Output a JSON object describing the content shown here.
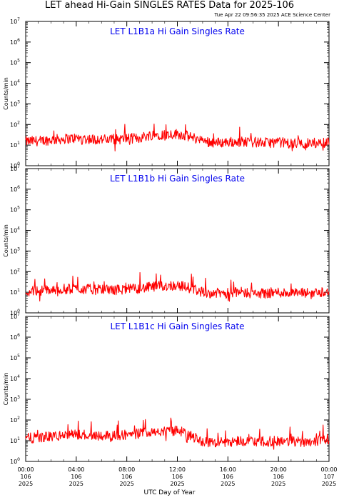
{
  "title": "LET ahead Hi-Gain SINGLES RATES Data for 2025-106",
  "timestamp": "Tue Apr 22 09:56:35 2025 ACE Science Center",
  "xlabel": "UTC Day of Year",
  "colors": {
    "panel_title": "#0000ee",
    "series": "#ff0000",
    "axes": "#000000"
  },
  "chart_data": [
    {
      "type": "line",
      "title": "LET L1B1a Hi Gain Singles Rate",
      "ylabel": "Counts/min",
      "yscale": "log",
      "ylim": [
        1,
        10000000
      ],
      "xlim": [
        0,
        24
      ],
      "y_tick_labels": [
        "10^0",
        "10^1",
        "10^2",
        "10^3",
        "10^4",
        "10^5",
        "10^6",
        "10^7"
      ],
      "x": [
        0,
        1,
        2,
        3,
        4,
        5,
        6,
        7,
        8,
        9,
        10,
        11,
        12,
        13,
        14,
        15,
        16,
        17,
        18,
        19,
        20,
        21,
        22,
        23,
        24
      ],
      "series": [
        {
          "values": [
            15,
            16,
            18,
            20,
            22,
            20,
            19,
            18,
            21,
            22,
            32,
            33,
            35,
            25,
            16,
            13,
            14,
            15,
            14,
            13,
            14,
            12,
            12,
            13,
            14
          ]
        }
      ]
    },
    {
      "type": "line",
      "title": "LET L1B1b Hi Gain Singles Rate",
      "ylabel": "Counts/min",
      "yscale": "log",
      "ylim": [
        1,
        10000000
      ],
      "xlim": [
        0,
        24
      ],
      "y_tick_labels": [
        "10^0",
        "10^1",
        "10^2",
        "10^3",
        "10^4",
        "10^5",
        "10^6",
        "10^7"
      ],
      "x": [
        0,
        1,
        2,
        3,
        4,
        5,
        6,
        7,
        8,
        9,
        10,
        11,
        12,
        13,
        14,
        15,
        16,
        17,
        18,
        19,
        20,
        21,
        22,
        23,
        24
      ],
      "series": [
        {
          "values": [
            11,
            12,
            13,
            14,
            15,
            14,
            13,
            13,
            14,
            15,
            18,
            20,
            22,
            16,
            10,
            9,
            9,
            10,
            9,
            9,
            10,
            9,
            9,
            10,
            11
          ]
        }
      ]
    },
    {
      "type": "line",
      "title": "LET L1B1c Hi Gain Singles Rate",
      "ylabel": "Counts/min",
      "yscale": "log",
      "ylim": [
        1,
        10000000
      ],
      "xlim": [
        0,
        24
      ],
      "y_tick_labels": [
        "10^0",
        "10^1",
        "10^2",
        "10^3",
        "10^4",
        "10^5",
        "10^6",
        "10^7"
      ],
      "x": [
        0,
        1,
        2,
        3,
        4,
        5,
        6,
        7,
        8,
        9,
        10,
        11,
        12,
        13,
        14,
        15,
        16,
        17,
        18,
        19,
        20,
        21,
        22,
        23,
        24
      ],
      "series": [
        {
          "values": [
            13,
            14,
            16,
            18,
            20,
            19,
            18,
            18,
            20,
            22,
            30,
            28,
            30,
            18,
            9,
            8,
            9,
            10,
            9,
            9,
            10,
            9,
            9,
            10,
            12
          ]
        }
      ]
    }
  ],
  "x_ticks": [
    {
      "time": "00:00",
      "day": "106",
      "year": "2025"
    },
    {
      "time": "04:00",
      "day": "106",
      "year": "2025"
    },
    {
      "time": "08:00",
      "day": "106",
      "year": "2025"
    },
    {
      "time": "12:00",
      "day": "106",
      "year": "2025"
    },
    {
      "time": "16:00",
      "day": "106",
      "year": "2025"
    },
    {
      "time": "20:00",
      "day": "106",
      "year": "2025"
    },
    {
      "time": "00:00",
      "day": "107",
      "year": "2025"
    }
  ]
}
